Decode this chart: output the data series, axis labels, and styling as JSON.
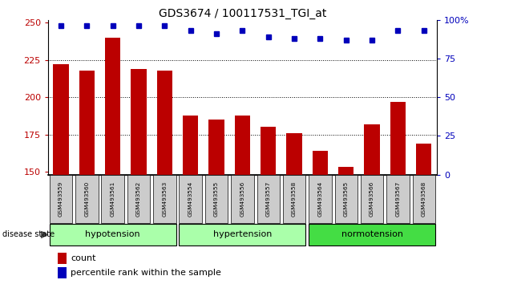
{
  "title": "GDS3674 / 100117531_TGI_at",
  "samples": [
    "GSM493559",
    "GSM493560",
    "GSM493561",
    "GSM493562",
    "GSM493563",
    "GSM493554",
    "GSM493555",
    "GSM493556",
    "GSM493557",
    "GSM493558",
    "GSM493564",
    "GSM493565",
    "GSM493566",
    "GSM493567",
    "GSM493568"
  ],
  "counts": [
    222,
    218,
    240,
    219,
    218,
    188,
    185,
    188,
    180,
    176,
    164,
    153,
    182,
    197,
    169
  ],
  "percentiles": [
    96,
    96,
    96,
    96,
    96,
    93,
    91,
    93,
    89,
    88,
    88,
    87,
    87,
    93,
    93
  ],
  "group_configs": [
    {
      "start": 0,
      "end": 4,
      "name": "hypotension",
      "color": "#AAFFAA"
    },
    {
      "start": 5,
      "end": 9,
      "name": "hypertension",
      "color": "#AAFFAA"
    },
    {
      "start": 10,
      "end": 14,
      "name": "normotension",
      "color": "#44DD44"
    }
  ],
  "ylim_left": [
    148,
    252
  ],
  "ylim_right": [
    0,
    100
  ],
  "yticks_left": [
    150,
    175,
    200,
    225,
    250
  ],
  "yticks_right": [
    0,
    25,
    50,
    75,
    100
  ],
  "bar_color": "#BB0000",
  "dot_color": "#0000BB",
  "grid_values": [
    175,
    200,
    225
  ],
  "label_count": "count",
  "label_percentile": "percentile rank within the sample",
  "sample_box_color": "#CCCCCC"
}
